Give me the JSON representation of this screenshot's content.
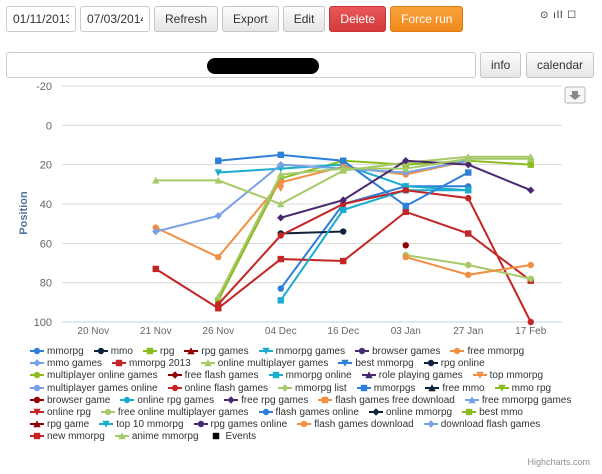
{
  "toolbar": {
    "start_date": "01/11/2013",
    "end_date": "07/03/2014",
    "refresh_label": "Refresh",
    "export_label": "Export",
    "edit_label": "Edit",
    "delete_label": "Delete",
    "force_label": "Force run"
  },
  "status": {
    "icons": "⊙ ıll ☐"
  },
  "search": {
    "value": "",
    "info_label": "info",
    "calendar_label": "calendar"
  },
  "colors": {
    "delete": "#d9403f",
    "force": "#f4921f"
  },
  "chart_data": {
    "type": "line",
    "ylabel": "Position",
    "xlabel": "",
    "categories": [
      "20 Nov",
      "21 Nov",
      "26 Nov",
      "04 Dec",
      "16 Dec",
      "03 Jan",
      "27 Jan",
      "17 Feb"
    ],
    "yticks": [
      -20,
      0,
      20,
      40,
      60,
      80,
      100
    ],
    "ylim": [
      -20,
      100
    ],
    "y_reversed": true,
    "credit": "Highcharts.com",
    "series": [
      {
        "name": "mmorpg",
        "color": "#2f7ed8",
        "marker": "circle",
        "values": [
          null,
          null,
          null,
          83,
          40,
          31,
          31,
          null
        ]
      },
      {
        "name": "mmo",
        "color": "#0d233a",
        "marker": "circle",
        "values": [
          null,
          null,
          null,
          55,
          54,
          null,
          null,
          null
        ]
      },
      {
        "name": "rpg",
        "color": "#8bbc21",
        "marker": "square",
        "values": [
          null,
          null,
          89,
          27,
          18,
          20,
          18,
          20
        ]
      },
      {
        "name": "rpg games",
        "color": "#910000",
        "marker": "triangle",
        "values": [
          null,
          null,
          null,
          null,
          null,
          null,
          null,
          null
        ]
      },
      {
        "name": "mmorpg games",
        "color": "#1aadce",
        "marker": "triangle-down",
        "values": [
          null,
          null,
          24,
          22,
          20,
          31,
          33,
          null
        ]
      },
      {
        "name": "browser games",
        "color": "#492970",
        "marker": "circle",
        "values": [
          null,
          null,
          null,
          null,
          null,
          null,
          null,
          null
        ]
      },
      {
        "name": "free mmorpg",
        "color": "#f28f43",
        "marker": "circle",
        "values": [
          null,
          52,
          67,
          29,
          21,
          25,
          18,
          null
        ]
      },
      {
        "name": "mmo games",
        "color": "#77a1e5",
        "marker": "diamond",
        "values": [
          null,
          54,
          46,
          20,
          22,
          24,
          18,
          null
        ]
      },
      {
        "name": "mmorpg 2013",
        "color": "#c42525",
        "marker": "square",
        "values": [
          null,
          73,
          93,
          68,
          69,
          44,
          55,
          79
        ]
      },
      {
        "name": "online multiplayer games",
        "color": "#a6c96a",
        "marker": "triangle",
        "values": [
          null,
          28,
          28,
          40,
          23,
          19,
          16,
          16
        ]
      },
      {
        "name": "best mmorpg",
        "color": "#2f7ed8",
        "marker": "triangle-down",
        "values": [
          null,
          null,
          null,
          null,
          null,
          null,
          null,
          null
        ]
      },
      {
        "name": "rpg online",
        "color": "#0d233a",
        "marker": "circle",
        "values": [
          null,
          null,
          null,
          null,
          null,
          null,
          null,
          null
        ]
      },
      {
        "name": "multiplayer online games",
        "color": "#8bbc21",
        "marker": "circle",
        "values": [
          null,
          null,
          null,
          null,
          null,
          null,
          null,
          null
        ]
      },
      {
        "name": "free flash games",
        "color": "#910000",
        "marker": "diamond",
        "values": [
          null,
          null,
          null,
          null,
          null,
          null,
          null,
          null
        ]
      },
      {
        "name": "mmorpg online",
        "color": "#1aadce",
        "marker": "square",
        "values": [
          null,
          null,
          null,
          89,
          43,
          33,
          33,
          null
        ]
      },
      {
        "name": "role playing games",
        "color": "#492970",
        "marker": "triangle",
        "values": [
          null,
          null,
          null,
          null,
          null,
          null,
          null,
          null
        ]
      },
      {
        "name": "top mmorpg",
        "color": "#f28f43",
        "marker": "triangle-down",
        "values": [
          null,
          null,
          null,
          32,
          null,
          null,
          null,
          null
        ]
      },
      {
        "name": "multiplayer games online",
        "color": "#77a1e5",
        "marker": "circle",
        "values": [
          null,
          null,
          null,
          null,
          null,
          null,
          null,
          null
        ]
      },
      {
        "name": "online flash games",
        "color": "#c42525",
        "marker": "circle",
        "values": [
          null,
          null,
          91,
          56,
          40,
          33,
          37,
          100
        ]
      },
      {
        "name": "mmorpg list",
        "color": "#a6c96a",
        "marker": "diamond",
        "values": [
          null,
          null,
          null,
          null,
          null,
          null,
          null,
          null
        ]
      },
      {
        "name": "mmorpgs",
        "color": "#2f7ed8",
        "marker": "square",
        "values": [
          null,
          null,
          18,
          15,
          18,
          41,
          24,
          null
        ]
      },
      {
        "name": "free mmo",
        "color": "#0d233a",
        "marker": "triangle",
        "values": [
          null,
          null,
          null,
          null,
          null,
          null,
          null,
          null
        ]
      },
      {
        "name": "mmo rpg",
        "color": "#8bbc21",
        "marker": "triangle-down",
        "values": [
          null,
          null,
          null,
          null,
          null,
          null,
          null,
          null
        ]
      },
      {
        "name": "browser game",
        "color": "#910000",
        "marker": "circle",
        "values": [
          null,
          null,
          null,
          null,
          null,
          61,
          null,
          null
        ]
      },
      {
        "name": "online rpg games",
        "color": "#1aadce",
        "marker": "circle",
        "values": [
          null,
          null,
          null,
          null,
          null,
          null,
          null,
          null
        ]
      },
      {
        "name": "free rpg games",
        "color": "#492970",
        "marker": "diamond",
        "values": [
          null,
          null,
          null,
          47,
          38,
          18,
          20,
          33
        ]
      },
      {
        "name": "flash games free download",
        "color": "#f28f43",
        "marker": "square",
        "values": [
          null,
          null,
          null,
          null,
          null,
          null,
          null,
          null
        ]
      },
      {
        "name": "free mmorpg games",
        "color": "#77a1e5",
        "marker": "triangle",
        "values": [
          null,
          null,
          null,
          null,
          null,
          null,
          null,
          null
        ]
      },
      {
        "name": "online rpg",
        "color": "#c42525",
        "marker": "triangle-down",
        "values": [
          null,
          null,
          null,
          null,
          null,
          null,
          null,
          null
        ]
      },
      {
        "name": "free online multiplayer games",
        "color": "#a6c96a",
        "marker": "circle",
        "values": [
          null,
          null,
          null,
          null,
          null,
          66,
          71,
          78
        ]
      },
      {
        "name": "flash games online",
        "color": "#2f7ed8",
        "marker": "circle",
        "values": [
          null,
          null,
          null,
          null,
          null,
          null,
          null,
          null
        ]
      },
      {
        "name": "online mmorpg",
        "color": "#0d233a",
        "marker": "diamond",
        "values": [
          null,
          null,
          null,
          null,
          null,
          null,
          null,
          null
        ]
      },
      {
        "name": "best mmo",
        "color": "#8bbc21",
        "marker": "square",
        "values": [
          null,
          null,
          null,
          null,
          null,
          null,
          null,
          null
        ]
      },
      {
        "name": "rpg game",
        "color": "#910000",
        "marker": "triangle",
        "values": [
          null,
          null,
          null,
          null,
          null,
          null,
          null,
          null
        ]
      },
      {
        "name": "top 10 mmorpg",
        "color": "#1aadce",
        "marker": "triangle-down",
        "values": [
          null,
          null,
          null,
          null,
          null,
          null,
          null,
          null
        ]
      },
      {
        "name": "rpg games online",
        "color": "#492970",
        "marker": "circle",
        "values": [
          null,
          null,
          null,
          null,
          null,
          null,
          null,
          null
        ]
      },
      {
        "name": "flash games download",
        "color": "#f28f43",
        "marker": "circle",
        "values": [
          null,
          null,
          null,
          null,
          null,
          67,
          76,
          71
        ]
      },
      {
        "name": "download flash games",
        "color": "#77a1e5",
        "marker": "diamond",
        "values": [
          null,
          null,
          null,
          null,
          null,
          null,
          null,
          null
        ]
      },
      {
        "name": "new mmorpg",
        "color": "#c42525",
        "marker": "square",
        "values": [
          null,
          null,
          null,
          null,
          null,
          null,
          null,
          null
        ]
      },
      {
        "name": "anime mmorpg",
        "color": "#a6c96a",
        "marker": "triangle",
        "values": [
          null,
          null,
          87,
          25,
          22,
          22,
          17,
          17
        ]
      },
      {
        "name": "Events",
        "color": "#000000",
        "marker": "square",
        "values": [
          null,
          null,
          null,
          null,
          null,
          null,
          null,
          null
        ]
      }
    ]
  }
}
